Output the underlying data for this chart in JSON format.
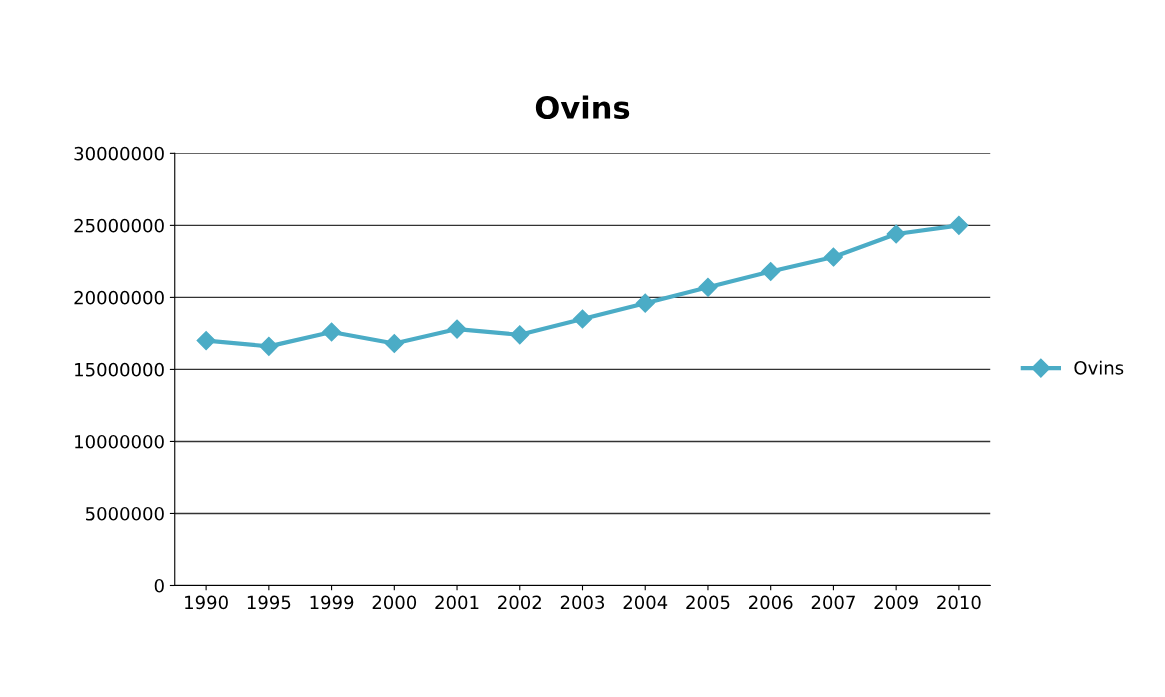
{
  "chart_data": {
    "type": "line",
    "title": "Ovins",
    "categories": [
      "1990",
      "1995",
      "1999",
      "2000",
      "2001",
      "2002",
      "2003",
      "2004",
      "2005",
      "2006",
      "2007",
      "2009",
      "2010"
    ],
    "series": [
      {
        "name": "Ovins",
        "color": "#4bacc6",
        "values": [
          17000000,
          16600000,
          17600000,
          16800000,
          17800000,
          17400000,
          18500000,
          19600000,
          20700000,
          21800000,
          22800000,
          24400000,
          25000000
        ]
      }
    ],
    "ylim": [
      0,
      30000000
    ],
    "yticks": [
      0,
      5000000,
      10000000,
      15000000,
      20000000,
      25000000,
      30000000
    ],
    "grid": "y",
    "legend": "right",
    "marker": "diamond",
    "line_style": "solid"
  }
}
